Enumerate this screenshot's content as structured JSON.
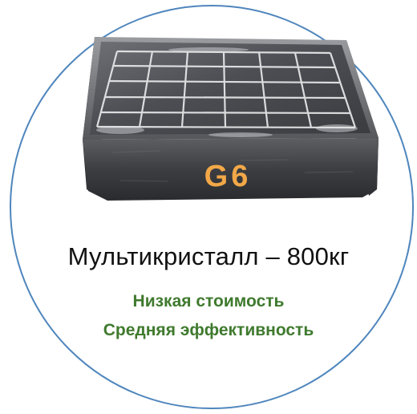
{
  "product": {
    "grade_label": "G6",
    "title": "Мультикристалл – 800кг",
    "features": [
      "Низкая стоимость",
      "Средняя эффективность"
    ]
  },
  "colors": {
    "circle_border": "#4f86bd",
    "feature_text": "#3f7a2e",
    "grade_label": "#f2a848"
  },
  "icons": {
    "ingot": "multicrystalline-silicon-ingot"
  }
}
